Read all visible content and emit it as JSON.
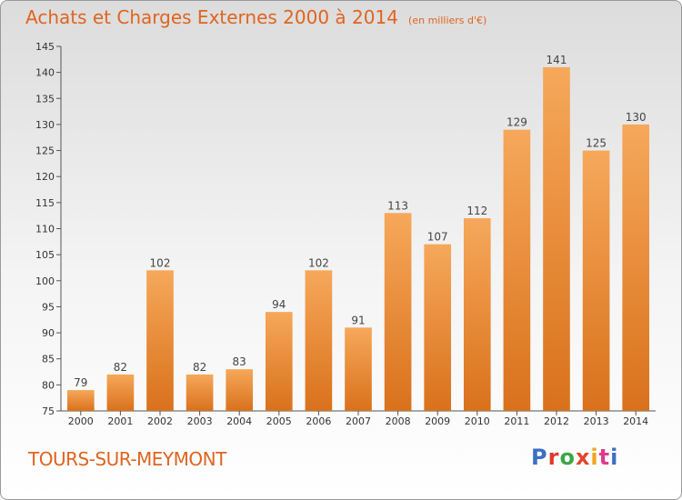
{
  "header": {
    "title": "Achats et Charges Externes 2000 à 2014",
    "subtitle": "(en milliers d'€)"
  },
  "footer": {
    "commune": "TOURS-SUR-MEYMONT",
    "logo_letters": [
      "P",
      "r",
      "o",
      "x",
      "i",
      "t",
      "i"
    ],
    "logo_colors": [
      "#3a6fc4",
      "#e03a2c",
      "#39a845",
      "#e2452b",
      "#f2a51e",
      "#e03a8c",
      "#3a6fc4"
    ]
  },
  "chart_data": {
    "type": "bar",
    "categories": [
      "2000",
      "2001",
      "2002",
      "2003",
      "2004",
      "2005",
      "2006",
      "2007",
      "2008",
      "2009",
      "2010",
      "2011",
      "2012",
      "2013",
      "2014"
    ],
    "values": [
      79,
      82,
      102,
      82,
      83,
      94,
      102,
      91,
      113,
      107,
      112,
      129,
      141,
      125,
      130
    ],
    "title": "Achats et Charges Externes 2000 à 2014",
    "ylim": [
      75,
      145
    ],
    "yticks": [
      75,
      80,
      85,
      90,
      95,
      100,
      105,
      110,
      115,
      120,
      125,
      130,
      135,
      140,
      145
    ],
    "grid": false,
    "bar_color_top": "#f6a85a",
    "bar_color_bottom": "#d9711c"
  }
}
